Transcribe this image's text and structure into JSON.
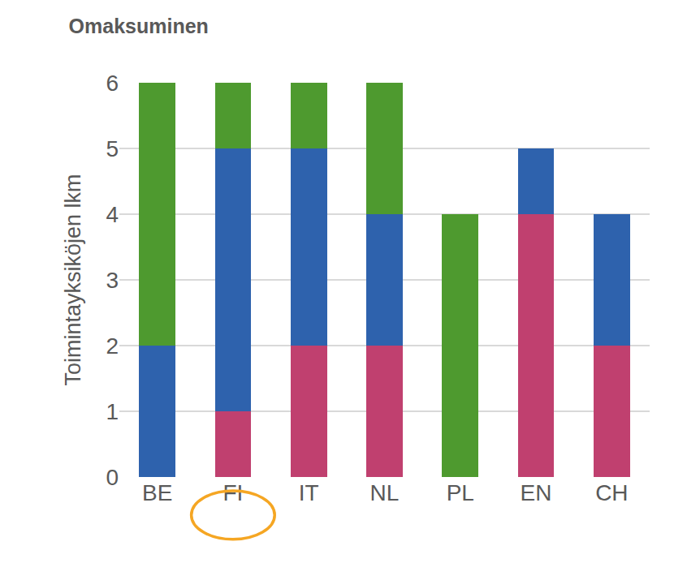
{
  "chart_data": {
    "type": "bar",
    "title": "Omaksuminen",
    "y_label": "Toimintayksiköjen lkm",
    "categories": [
      "BE",
      "FI",
      "IT",
      "NL",
      "PL",
      "EN",
      "CH"
    ],
    "series": [
      {
        "color": "#c0406f",
        "values": [
          0,
          1,
          2,
          2,
          0,
          4,
          2
        ]
      },
      {
        "color": "#2e62ad",
        "values": [
          2,
          4,
          3,
          2,
          0,
          1,
          2
        ]
      },
      {
        "color": "#4e9a2f",
        "values": [
          4,
          1,
          1,
          2,
          4,
          0,
          0
        ]
      }
    ],
    "stacked": true,
    "ylim": [
      0,
      6
    ],
    "yticks": [
      0,
      1,
      2,
      3,
      4,
      5,
      6
    ],
    "grid": true
  }
}
